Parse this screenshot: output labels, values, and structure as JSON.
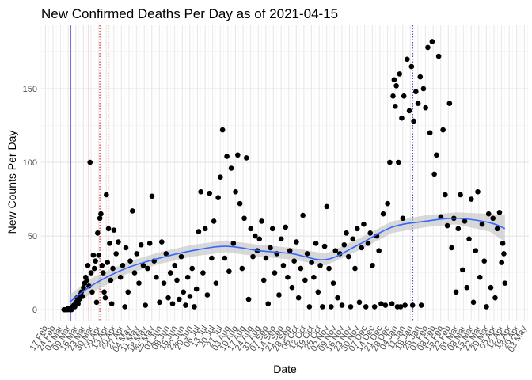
{
  "chart_data": {
    "type": "scatter",
    "title": "New Confirmed Deaths Per Day as of 2021-04-15",
    "xlabel": "Date",
    "ylabel": "New Counts Per Day",
    "xlim": [
      "2020-02-13",
      "2021-05-07"
    ],
    "ylim": [
      -8,
      193
    ],
    "y_ticks": [
      0,
      50,
      100,
      150
    ],
    "x_tick_labels": [
      "17 Feb",
      "24 Feb",
      "02 Mar",
      "09 Mar",
      "16 Mar",
      "23 Mar",
      "30 Mar",
      "06 Apr",
      "13 Apr",
      "20 Apr",
      "27 Apr",
      "04 May",
      "11 May",
      "18 May",
      "25 May",
      "01 Jun",
      "08 Jun",
      "15 Jun",
      "22 Jun",
      "29 Jun",
      "06 Jul",
      "13 Jul",
      "20 Jul",
      "27 Jul",
      "03 Aug",
      "10 Aug",
      "17 Aug",
      "24 Aug",
      "31 Aug",
      "07 Sep",
      "14 Sep",
      "21 Sep",
      "28 Sep",
      "05 Oct",
      "12 Oct",
      "19 Oct",
      "26 Oct",
      "02 Nov",
      "09 Nov",
      "16 Nov",
      "23 Nov",
      "30 Nov",
      "07 Dec",
      "14 Dec",
      "21 Dec",
      "28 Dec",
      "04 Jan",
      "11 Jan",
      "18 Jan",
      "25 Jan",
      "01 Feb",
      "08 Feb",
      "15 Feb",
      "22 Feb",
      "01 Mar",
      "08 Mar",
      "15 Mar",
      "22 Mar",
      "29 Mar",
      "05 Apr",
      "12 Apr",
      "19 Apr",
      "26 Apr",
      "03 May"
    ],
    "x_tick_dates": [
      "2020-02-17",
      "2020-02-24",
      "2020-03-02",
      "2020-03-09",
      "2020-03-16",
      "2020-03-23",
      "2020-03-30",
      "2020-04-06",
      "2020-04-13",
      "2020-04-20",
      "2020-04-27",
      "2020-05-04",
      "2020-05-11",
      "2020-05-18",
      "2020-05-25",
      "2020-06-01",
      "2020-06-08",
      "2020-06-15",
      "2020-06-22",
      "2020-06-29",
      "2020-07-06",
      "2020-07-13",
      "2020-07-20",
      "2020-07-27",
      "2020-08-03",
      "2020-08-10",
      "2020-08-17",
      "2020-08-24",
      "2020-08-31",
      "2020-09-07",
      "2020-09-14",
      "2020-09-21",
      "2020-09-28",
      "2020-10-05",
      "2020-10-12",
      "2020-10-19",
      "2020-10-26",
      "2020-11-02",
      "2020-11-09",
      "2020-11-16",
      "2020-11-23",
      "2020-11-30",
      "2020-12-07",
      "2020-12-14",
      "2020-12-21",
      "2020-12-28",
      "2021-01-04",
      "2021-01-11",
      "2021-01-18",
      "2021-01-25",
      "2021-02-01",
      "2021-02-08",
      "2021-02-15",
      "2021-02-22",
      "2021-03-01",
      "2021-03-08",
      "2021-03-15",
      "2021-03-22",
      "2021-03-29",
      "2021-04-05",
      "2021-04-12",
      "2021-04-19",
      "2021-04-26",
      "2021-05-03"
    ],
    "reference_lines": [
      {
        "date": "2020-03-11",
        "color": "#0000cc",
        "style": "solid"
      },
      {
        "date": "2020-03-28",
        "color": "#cc0000",
        "style": "solid"
      },
      {
        "date": "2020-04-07",
        "color": "#cc0000",
        "style": "dotted"
      },
      {
        "date": "2020-04-15",
        "color": "#ff9999",
        "style": "dotted"
      },
      {
        "date": "2021-01-20",
        "color": "#0000cc",
        "style": "dotted"
      }
    ],
    "point_color": "#000000",
    "smooth_color": "#3366ff",
    "band_color": "#bfbfbf",
    "smooth": [
      {
        "date": "2020-03-10",
        "y": 5,
        "lo": 0,
        "hi": 10
      },
      {
        "date": "2020-04-01",
        "y": 17,
        "lo": 12,
        "hi": 22
      },
      {
        "date": "2020-05-01",
        "y": 28,
        "lo": 24,
        "hi": 32
      },
      {
        "date": "2020-06-01",
        "y": 35,
        "lo": 31,
        "hi": 39
      },
      {
        "date": "2020-07-01",
        "y": 40,
        "lo": 36,
        "hi": 44
      },
      {
        "date": "2020-08-01",
        "y": 43,
        "lo": 39,
        "hi": 47
      },
      {
        "date": "2020-09-01",
        "y": 40,
        "lo": 36,
        "hi": 44
      },
      {
        "date": "2020-10-01",
        "y": 38,
        "lo": 34,
        "hi": 42
      },
      {
        "date": "2020-11-01",
        "y": 34,
        "lo": 30,
        "hi": 38
      },
      {
        "date": "2020-12-01",
        "y": 44,
        "lo": 40,
        "hi": 48
      },
      {
        "date": "2021-01-01",
        "y": 56,
        "lo": 52,
        "hi": 60
      },
      {
        "date": "2021-02-01",
        "y": 60,
        "lo": 56,
        "hi": 64
      },
      {
        "date": "2021-03-01",
        "y": 62,
        "lo": 58,
        "hi": 66
      },
      {
        "date": "2021-04-01",
        "y": 59,
        "lo": 53,
        "hi": 65
      },
      {
        "date": "2021-04-15",
        "y": 55,
        "lo": 46,
        "hi": 64
      }
    ],
    "points": [
      {
        "date": "2020-03-05",
        "y": 0
      },
      {
        "date": "2020-03-06",
        "y": 0
      },
      {
        "date": "2020-03-07",
        "y": 0
      },
      {
        "date": "2020-03-08",
        "y": 0
      },
      {
        "date": "2020-03-09",
        "y": 1
      },
      {
        "date": "2020-03-10",
        "y": 0
      },
      {
        "date": "2020-03-11",
        "y": 1
      },
      {
        "date": "2020-03-12",
        "y": 0
      },
      {
        "date": "2020-03-13",
        "y": 2
      },
      {
        "date": "2020-03-14",
        "y": 3
      },
      {
        "date": "2020-03-15",
        "y": 2
      },
      {
        "date": "2020-03-16",
        "y": 5
      },
      {
        "date": "2020-03-17",
        "y": 8
      },
      {
        "date": "2020-03-18",
        "y": 4
      },
      {
        "date": "2020-03-19",
        "y": 7
      },
      {
        "date": "2020-03-20",
        "y": 10
      },
      {
        "date": "2020-03-21",
        "y": 12
      },
      {
        "date": "2020-03-22",
        "y": 9
      },
      {
        "date": "2020-03-23",
        "y": 15
      },
      {
        "date": "2020-03-24",
        "y": 18
      },
      {
        "date": "2020-03-25",
        "y": 22
      },
      {
        "date": "2020-03-26",
        "y": 20
      },
      {
        "date": "2020-03-27",
        "y": 30
      },
      {
        "date": "2020-03-28",
        "y": 16
      },
      {
        "date": "2020-03-29",
        "y": 100
      },
      {
        "date": "2020-03-30",
        "y": 25
      },
      {
        "date": "2020-03-31",
        "y": 12
      },
      {
        "date": "2020-04-01",
        "y": 37
      },
      {
        "date": "2020-04-02",
        "y": 28
      },
      {
        "date": "2020-04-03",
        "y": 33
      },
      {
        "date": "2020-04-04",
        "y": 5
      },
      {
        "date": "2020-04-05",
        "y": 52
      },
      {
        "date": "2020-04-06",
        "y": 37
      },
      {
        "date": "2020-04-07",
        "y": 62
      },
      {
        "date": "2020-04-08",
        "y": 65
      },
      {
        "date": "2020-04-09",
        "y": 30
      },
      {
        "date": "2020-04-10",
        "y": 25
      },
      {
        "date": "2020-04-11",
        "y": 12
      },
      {
        "date": "2020-04-12",
        "y": 8
      },
      {
        "date": "2020-04-13",
        "y": 78
      },
      {
        "date": "2020-04-14",
        "y": 32
      },
      {
        "date": "2020-04-15",
        "y": 55
      },
      {
        "date": "2020-04-16",
        "y": 45
      },
      {
        "date": "2020-04-17",
        "y": 20
      },
      {
        "date": "2020-04-18",
        "y": 4
      },
      {
        "date": "2020-04-19",
        "y": 28
      },
      {
        "date": "2020-04-20",
        "y": 54
      },
      {
        "date": "2020-04-22",
        "y": 38
      },
      {
        "date": "2020-04-24",
        "y": 46
      },
      {
        "date": "2020-04-26",
        "y": 22
      },
      {
        "date": "2020-04-28",
        "y": 30
      },
      {
        "date": "2020-04-30",
        "y": 2
      },
      {
        "date": "2020-05-01",
        "y": 42
      },
      {
        "date": "2020-05-03",
        "y": 12
      },
      {
        "date": "2020-05-05",
        "y": 33
      },
      {
        "date": "2020-05-07",
        "y": 67
      },
      {
        "date": "2020-05-09",
        "y": 25
      },
      {
        "date": "2020-05-11",
        "y": 38
      },
      {
        "date": "2020-05-13",
        "y": 18
      },
      {
        "date": "2020-05-15",
        "y": 44
      },
      {
        "date": "2020-05-17",
        "y": 30
      },
      {
        "date": "2020-05-19",
        "y": 3
      },
      {
        "date": "2020-05-21",
        "y": 28
      },
      {
        "date": "2020-05-23",
        "y": 45
      },
      {
        "date": "2020-05-25",
        "y": 77
      },
      {
        "date": "2020-05-27",
        "y": 33
      },
      {
        "date": "2020-05-29",
        "y": 22
      },
      {
        "date": "2020-06-01",
        "y": 5
      },
      {
        "date": "2020-06-03",
        "y": 46
      },
      {
        "date": "2020-06-05",
        "y": 18
      },
      {
        "date": "2020-06-07",
        "y": 38
      },
      {
        "date": "2020-06-09",
        "y": 8
      },
      {
        "date": "2020-06-11",
        "y": 25
      },
      {
        "date": "2020-06-13",
        "y": 4
      },
      {
        "date": "2020-06-15",
        "y": 30
      },
      {
        "date": "2020-06-17",
        "y": 20
      },
      {
        "date": "2020-06-19",
        "y": 7
      },
      {
        "date": "2020-06-21",
        "y": 36
      },
      {
        "date": "2020-06-23",
        "y": 12
      },
      {
        "date": "2020-06-25",
        "y": 3
      },
      {
        "date": "2020-06-27",
        "y": 22
      },
      {
        "date": "2020-06-29",
        "y": 9
      },
      {
        "date": "2020-07-01",
        "y": 28
      },
      {
        "date": "2020-07-03",
        "y": 2
      },
      {
        "date": "2020-07-05",
        "y": 14
      },
      {
        "date": "2020-07-07",
        "y": 53
      },
      {
        "date": "2020-07-09",
        "y": 80
      },
      {
        "date": "2020-07-11",
        "y": 25
      },
      {
        "date": "2020-07-13",
        "y": 55
      },
      {
        "date": "2020-07-15",
        "y": 10
      },
      {
        "date": "2020-07-17",
        "y": 79
      },
      {
        "date": "2020-07-19",
        "y": 35
      },
      {
        "date": "2020-07-21",
        "y": 60
      },
      {
        "date": "2020-07-23",
        "y": 18
      },
      {
        "date": "2020-07-25",
        "y": 76
      },
      {
        "date": "2020-07-27",
        "y": 90
      },
      {
        "date": "2020-07-29",
        "y": 122
      },
      {
        "date": "2020-07-31",
        "y": 35
      },
      {
        "date": "2020-08-02",
        "y": 104
      },
      {
        "date": "2020-08-04",
        "y": 26
      },
      {
        "date": "2020-08-06",
        "y": 96
      },
      {
        "date": "2020-08-08",
        "y": 45
      },
      {
        "date": "2020-08-10",
        "y": 80
      },
      {
        "date": "2020-08-12",
        "y": 105
      },
      {
        "date": "2020-08-14",
        "y": 72
      },
      {
        "date": "2020-08-16",
        "y": 28
      },
      {
        "date": "2020-08-18",
        "y": 62
      },
      {
        "date": "2020-08-20",
        "y": 103
      },
      {
        "date": "2020-08-22",
        "y": 7
      },
      {
        "date": "2020-08-24",
        "y": 55
      },
      {
        "date": "2020-08-26",
        "y": 36
      },
      {
        "date": "2020-08-28",
        "y": 50
      },
      {
        "date": "2020-08-30",
        "y": 40
      },
      {
        "date": "2020-09-01",
        "y": 48
      },
      {
        "date": "2020-09-03",
        "y": 60
      },
      {
        "date": "2020-09-05",
        "y": 20
      },
      {
        "date": "2020-09-07",
        "y": 35
      },
      {
        "date": "2020-09-09",
        "y": 4
      },
      {
        "date": "2020-09-11",
        "y": 42
      },
      {
        "date": "2020-09-13",
        "y": 55
      },
      {
        "date": "2020-09-15",
        "y": 25
      },
      {
        "date": "2020-09-17",
        "y": 38
      },
      {
        "date": "2020-09-19",
        "y": 10
      },
      {
        "date": "2020-09-21",
        "y": 48
      },
      {
        "date": "2020-09-23",
        "y": 30
      },
      {
        "date": "2020-09-25",
        "y": 56
      },
      {
        "date": "2020-09-27",
        "y": 22
      },
      {
        "date": "2020-09-29",
        "y": 40
      },
      {
        "date": "2020-10-01",
        "y": 15
      },
      {
        "date": "2020-10-03",
        "y": 33
      },
      {
        "date": "2020-10-05",
        "y": 46
      },
      {
        "date": "2020-10-07",
        "y": 8
      },
      {
        "date": "2020-10-09",
        "y": 28
      },
      {
        "date": "2020-10-11",
        "y": 64
      },
      {
        "date": "2020-10-13",
        "y": 20
      },
      {
        "date": "2020-10-15",
        "y": 38
      },
      {
        "date": "2020-10-17",
        "y": 2
      },
      {
        "date": "2020-10-19",
        "y": 32
      },
      {
        "date": "2020-10-21",
        "y": 22
      },
      {
        "date": "2020-10-23",
        "y": 45
      },
      {
        "date": "2020-10-25",
        "y": 12
      },
      {
        "date": "2020-10-27",
        "y": 30
      },
      {
        "date": "2020-10-29",
        "y": 2
      },
      {
        "date": "2020-10-31",
        "y": 43
      },
      {
        "date": "2020-11-02",
        "y": 70
      },
      {
        "date": "2020-11-04",
        "y": 28
      },
      {
        "date": "2020-11-06",
        "y": 2
      },
      {
        "date": "2020-11-08",
        "y": 18
      },
      {
        "date": "2020-11-10",
        "y": 40
      },
      {
        "date": "2020-11-12",
        "y": 8
      },
      {
        "date": "2020-11-14",
        "y": 38
      },
      {
        "date": "2020-11-16",
        "y": 3
      },
      {
        "date": "2020-11-18",
        "y": 44
      },
      {
        "date": "2020-11-20",
        "y": 52
      },
      {
        "date": "2020-11-22",
        "y": 36
      },
      {
        "date": "2020-11-24",
        "y": 2
      },
      {
        "date": "2020-11-26",
        "y": 48
      },
      {
        "date": "2020-11-28",
        "y": 28
      },
      {
        "date": "2020-11-30",
        "y": 55
      },
      {
        "date": "2020-12-02",
        "y": 5
      },
      {
        "date": "2020-12-04",
        "y": 42
      },
      {
        "date": "2020-12-06",
        "y": 58
      },
      {
        "date": "2020-12-08",
        "y": 2
      },
      {
        "date": "2020-12-10",
        "y": 45
      },
      {
        "date": "2020-12-12",
        "y": 52
      },
      {
        "date": "2020-12-14",
        "y": 30
      },
      {
        "date": "2020-12-16",
        "y": 2
      },
      {
        "date": "2020-12-18",
        "y": 50
      },
      {
        "date": "2020-12-20",
        "y": 40
      },
      {
        "date": "2020-12-22",
        "y": 4
      },
      {
        "date": "2020-12-24",
        "y": 65
      },
      {
        "date": "2020-12-26",
        "y": 3
      },
      {
        "date": "2020-12-28",
        "y": 72
      },
      {
        "date": "2020-12-30",
        "y": 100
      },
      {
        "date": "2021-01-01",
        "y": 4
      },
      {
        "date": "2021-01-02",
        "y": 145
      },
      {
        "date": "2021-01-03",
        "y": 156
      },
      {
        "date": "2021-01-04",
        "y": 138
      },
      {
        "date": "2021-01-05",
        "y": 152
      },
      {
        "date": "2021-01-06",
        "y": 2
      },
      {
        "date": "2021-01-07",
        "y": 100
      },
      {
        "date": "2021-01-08",
        "y": 160
      },
      {
        "date": "2021-01-09",
        "y": 2
      },
      {
        "date": "2021-01-10",
        "y": 130
      },
      {
        "date": "2021-01-11",
        "y": 62
      },
      {
        "date": "2021-01-12",
        "y": 145
      },
      {
        "date": "2021-01-13",
        "y": 3
      },
      {
        "date": "2021-01-15",
        "y": 170
      },
      {
        "date": "2021-01-17",
        "y": 135
      },
      {
        "date": "2021-01-19",
        "y": 165
      },
      {
        "date": "2021-01-20",
        "y": 3
      },
      {
        "date": "2021-01-21",
        "y": 128
      },
      {
        "date": "2021-01-23",
        "y": 148
      },
      {
        "date": "2021-01-25",
        "y": 140
      },
      {
        "date": "2021-01-27",
        "y": 158
      },
      {
        "date": "2021-01-28",
        "y": 3
      },
      {
        "date": "2021-01-30",
        "y": 150
      },
      {
        "date": "2021-02-01",
        "y": 137
      },
      {
        "date": "2021-02-03",
        "y": 178
      },
      {
        "date": "2021-02-05",
        "y": 120
      },
      {
        "date": "2021-02-07",
        "y": 182
      },
      {
        "date": "2021-02-09",
        "y": 92
      },
      {
        "date": "2021-02-11",
        "y": 105
      },
      {
        "date": "2021-02-13",
        "y": 172
      },
      {
        "date": "2021-02-15",
        "y": 63
      },
      {
        "date": "2021-02-17",
        "y": 122
      },
      {
        "date": "2021-02-19",
        "y": 78
      },
      {
        "date": "2021-02-21",
        "y": 57
      },
      {
        "date": "2021-02-23",
        "y": 140
      },
      {
        "date": "2021-02-25",
        "y": 42
      },
      {
        "date": "2021-02-27",
        "y": 62
      },
      {
        "date": "2021-03-01",
        "y": 12
      },
      {
        "date": "2021-03-03",
        "y": 55
      },
      {
        "date": "2021-03-05",
        "y": 78
      },
      {
        "date": "2021-03-07",
        "y": 27
      },
      {
        "date": "2021-03-09",
        "y": 60
      },
      {
        "date": "2021-03-11",
        "y": 15
      },
      {
        "date": "2021-03-13",
        "y": 48
      },
      {
        "date": "2021-03-15",
        "y": 75
      },
      {
        "date": "2021-03-17",
        "y": 5
      },
      {
        "date": "2021-03-19",
        "y": 40
      },
      {
        "date": "2021-03-21",
        "y": 80
      },
      {
        "date": "2021-03-23",
        "y": 22
      },
      {
        "date": "2021-03-25",
        "y": 58
      },
      {
        "date": "2021-03-27",
        "y": 33
      },
      {
        "date": "2021-03-29",
        "y": 2
      },
      {
        "date": "2021-03-31",
        "y": 65
      },
      {
        "date": "2021-04-02",
        "y": 15
      },
      {
        "date": "2021-04-04",
        "y": 62
      },
      {
        "date": "2021-04-06",
        "y": 8
      },
      {
        "date": "2021-04-08",
        "y": 55
      },
      {
        "date": "2021-04-10",
        "y": 66
      },
      {
        "date": "2021-04-12",
        "y": 32
      },
      {
        "date": "2021-04-13",
        "y": 45
      },
      {
        "date": "2021-04-14",
        "y": 38
      },
      {
        "date": "2021-04-15",
        "y": 18
      }
    ]
  }
}
